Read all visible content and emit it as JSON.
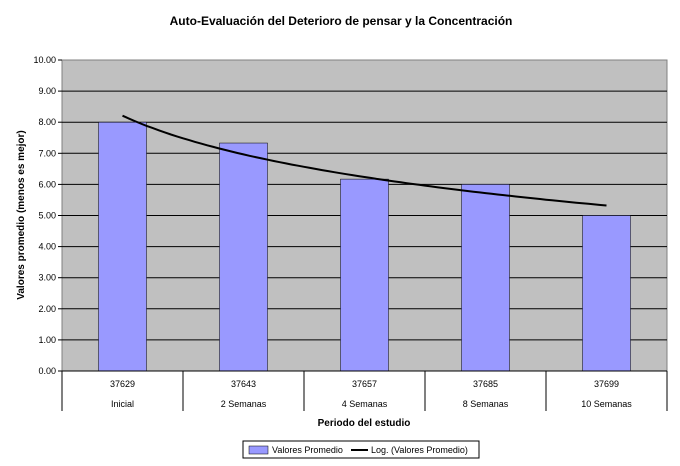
{
  "chart_data": {
    "type": "bar",
    "title": "Auto-Evaluación del Deterioro de pensar y la Concentración",
    "xlabel": "Periodo del estudio",
    "ylabel": "Valores promedio (menos es mejor)",
    "ylim": [
      0,
      10
    ],
    "y_ticks": [
      "0.00",
      "1.00",
      "2.00",
      "3.00",
      "4.00",
      "5.00",
      "6.00",
      "7.00",
      "8.00",
      "9.00",
      "10.00"
    ],
    "categories_row1": [
      "37629",
      "37643",
      "37657",
      "37685",
      "37699"
    ],
    "categories": [
      "Inicial",
      "2 Semanas",
      "4 Semanas",
      "8 Semanas",
      "10 Semanas"
    ],
    "series": [
      {
        "name": "Valores Promedio",
        "values": [
          8.0,
          7.33,
          6.17,
          6.0,
          5.0
        ],
        "color": "#9999ff"
      }
    ],
    "trendline": {
      "name": "Log. (Valores Promedio)",
      "type": "logarithmic",
      "values": [
        8.21,
        7.12,
        6.48,
        6.03,
        5.32
      ],
      "color": "#000000"
    },
    "plot_background": "#c0c0c0",
    "grid": true,
    "legend_position": "bottom"
  }
}
